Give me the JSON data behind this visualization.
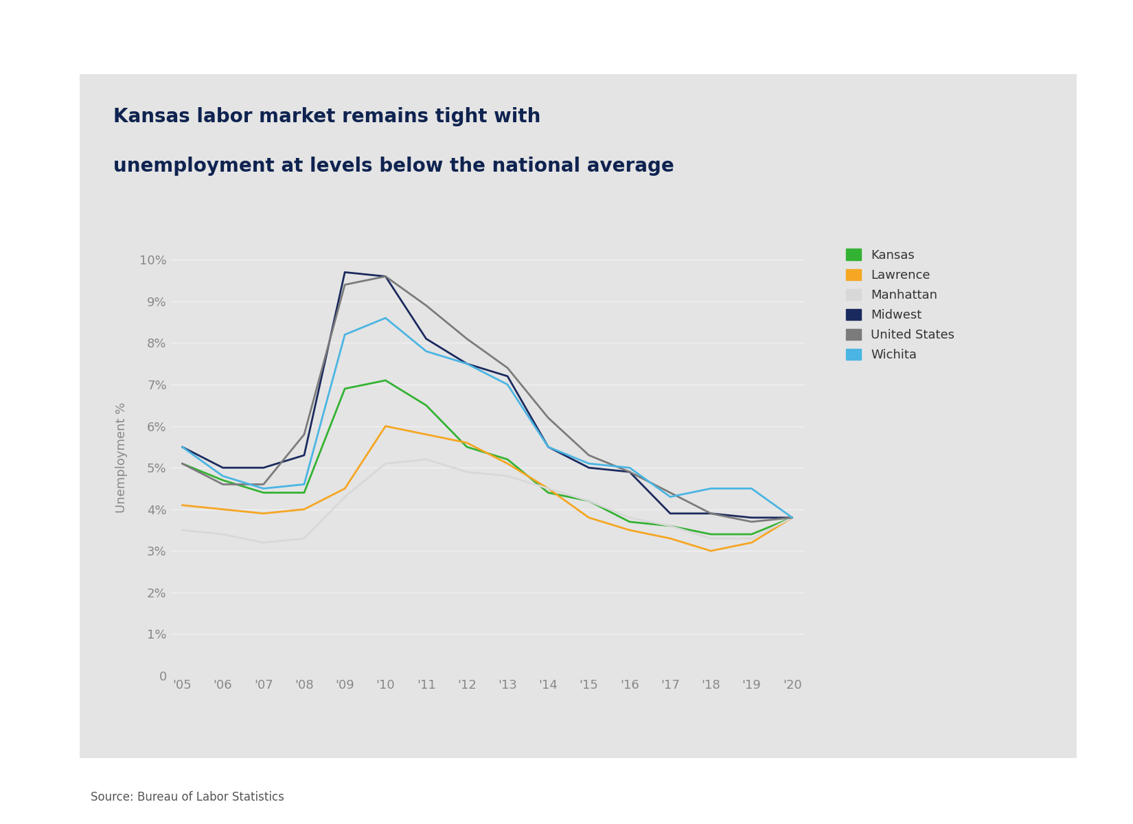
{
  "title_line1": "Kansas labor market remains tight with",
  "title_line2": "unemployment at levels below the national average",
  "title_color": "#0f2350",
  "source_text": "Source: Bureau of Labor Statistics",
  "outer_bg": "#ffffff",
  "panel_bg": "#e4e4e4",
  "ylabel": "Unemployment %",
  "x_labels": [
    "'05",
    "'06",
    "'07",
    "'08",
    "'09",
    "'10",
    "'11",
    "'12",
    "'13",
    "'14",
    "'15",
    "'16",
    "'17",
    "'18",
    "'19",
    "'20"
  ],
  "series": {
    "Kansas": {
      "color": "#34b233",
      "data": [
        5.1,
        4.7,
        4.4,
        4.4,
        6.9,
        7.1,
        6.5,
        5.5,
        5.2,
        4.4,
        4.2,
        3.7,
        3.6,
        3.4,
        3.4,
        3.8
      ]
    },
    "Lawrence": {
      "color": "#f5a623",
      "data": [
        4.1,
        4.0,
        3.9,
        4.0,
        4.5,
        6.0,
        5.8,
        5.6,
        5.1,
        4.5,
        3.8,
        3.5,
        3.3,
        3.0,
        3.2,
        3.8
      ]
    },
    "Manhattan": {
      "color": "#d8d8d8",
      "data": [
        3.5,
        3.4,
        3.2,
        3.3,
        4.3,
        5.1,
        5.2,
        4.9,
        4.8,
        4.5,
        4.2,
        3.8,
        3.6,
        3.3,
        3.3,
        3.8
      ]
    },
    "Midwest": {
      "color": "#1b2a5e",
      "data": [
        5.5,
        5.0,
        5.0,
        5.3,
        9.7,
        9.6,
        8.1,
        7.5,
        7.2,
        5.5,
        5.0,
        4.9,
        3.9,
        3.9,
        3.8,
        3.8
      ]
    },
    "United States": {
      "color": "#7b7b7b",
      "data": [
        5.1,
        4.6,
        4.6,
        5.8,
        9.4,
        9.6,
        8.9,
        8.1,
        7.4,
        6.2,
        5.3,
        4.9,
        4.4,
        3.9,
        3.7,
        3.8
      ]
    },
    "Wichita": {
      "color": "#4ab5e3",
      "data": [
        5.5,
        4.8,
        4.5,
        4.6,
        8.2,
        8.6,
        7.8,
        7.5,
        7.0,
        5.5,
        5.1,
        5.0,
        4.3,
        4.5,
        4.5,
        3.8
      ]
    }
  },
  "ylim": [
    0,
    10.5
  ],
  "yticks": [
    0,
    1,
    2,
    3,
    4,
    5,
    6,
    7,
    8,
    9,
    10
  ],
  "ytick_labels": [
    "0",
    "1%",
    "2%",
    "3%",
    "4%",
    "5%",
    "6%",
    "7%",
    "8%",
    "9%",
    "10%"
  ],
  "legend_order": [
    "Kansas",
    "Lawrence",
    "Manhattan",
    "Midwest",
    "United States",
    "Wichita"
  ],
  "tick_color": "#888888",
  "label_color": "#888888"
}
